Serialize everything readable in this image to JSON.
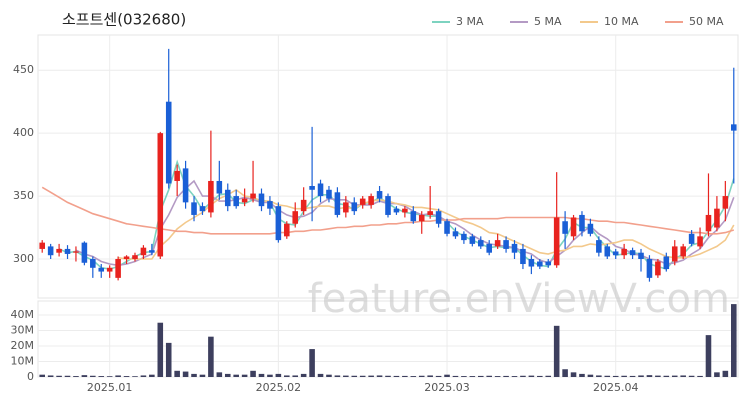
{
  "chart_data": [
    {
      "type": "candlestick",
      "title": "소프트센(032680)",
      "watermark": "feature.enViewV.com",
      "categories": [
        null,
        null,
        null,
        null,
        null,
        null,
        null,
        null,
        "2025.01",
        null,
        null,
        null,
        null,
        null,
        null,
        null,
        null,
        null,
        null,
        null,
        null,
        null,
        null,
        null,
        null,
        null,
        null,
        null,
        "2025.02",
        null,
        null,
        null,
        null,
        null,
        null,
        null,
        null,
        null,
        null,
        null,
        null,
        null,
        null,
        null,
        null,
        null,
        null,
        null,
        "2025.03",
        null,
        null,
        null,
        null,
        null,
        null,
        null,
        null,
        null,
        null,
        null,
        null,
        null,
        null,
        null,
        null,
        null,
        null,
        null,
        "2025.04",
        null,
        null,
        null,
        null,
        null,
        null,
        null,
        null,
        null,
        null,
        null,
        null,
        null,
        null
      ],
      "open": [
        308,
        310,
        305,
        308,
        305,
        313,
        300,
        293,
        290,
        285,
        300,
        300,
        303,
        307,
        302,
        425,
        362,
        372,
        345,
        342,
        337,
        362,
        355,
        350,
        345,
        348,
        352,
        346,
        342,
        318,
        328,
        338,
        358,
        360,
        355,
        353,
        337,
        345,
        343,
        343,
        354,
        350,
        340,
        337,
        338,
        330,
        335,
        338,
        330,
        322,
        320,
        318,
        315,
        312,
        310,
        315,
        312,
        308,
        300,
        298,
        298,
        295,
        330,
        318,
        335,
        328,
        315,
        310,
        306,
        303,
        307,
        305,
        300,
        287,
        302,
        298,
        302,
        320,
        310,
        322,
        325,
        340,
        407
      ],
      "high": [
        315,
        312,
        312,
        311,
        310,
        314,
        302,
        296,
        295,
        302,
        303,
        305,
        311,
        312,
        401,
        467,
        375,
        378,
        350,
        345,
        402,
        378,
        360,
        355,
        356,
        378,
        356,
        350,
        345,
        330,
        345,
        357,
        405,
        363,
        358,
        357,
        350,
        349,
        350,
        352,
        358,
        352,
        342,
        342,
        342,
        338,
        358,
        340,
        332,
        325,
        322,
        320,
        318,
        315,
        320,
        318,
        315,
        312,
        303,
        300,
        300,
        369,
        338,
        335,
        338,
        332,
        318,
        312,
        308,
        312,
        309,
        308,
        303,
        300,
        305,
        315,
        312,
        323,
        325,
        368,
        350,
        362,
        452
      ],
      "low": [
        305,
        300,
        302,
        300,
        298,
        295,
        285,
        285,
        285,
        283,
        296,
        298,
        300,
        303,
        300,
        356,
        350,
        340,
        330,
        335,
        333,
        347,
        338,
        340,
        342,
        345,
        338,
        335,
        313,
        316,
        325,
        335,
        330,
        345,
        345,
        333,
        333,
        335,
        340,
        340,
        345,
        333,
        335,
        333,
        328,
        320,
        332,
        325,
        318,
        316,
        312,
        310,
        308,
        303,
        308,
        305,
        300,
        292,
        288,
        292,
        293,
        293,
        308,
        315,
        318,
        318,
        302,
        300,
        300,
        300,
        300,
        290,
        282,
        285,
        290,
        295,
        300,
        310,
        308,
        318,
        322,
        330,
        360
      ],
      "close": [
        313,
        303,
        308,
        304,
        306,
        297,
        293,
        290,
        293,
        300,
        302,
        303,
        309,
        305,
        400,
        360,
        370,
        345,
        335,
        338,
        362,
        352,
        342,
        342,
        348,
        352,
        342,
        340,
        315,
        328,
        338,
        347,
        355,
        350,
        348,
        335,
        345,
        338,
        348,
        350,
        348,
        335,
        337,
        340,
        330,
        335,
        338,
        328,
        320,
        318,
        315,
        312,
        310,
        305,
        315,
        308,
        305,
        296,
        294,
        294,
        295,
        333,
        320,
        333,
        322,
        320,
        305,
        302,
        303,
        308,
        303,
        300,
        285,
        298,
        292,
        310,
        310,
        312,
        318,
        335,
        340,
        350,
        402
      ],
      "up_color": "#e8231f",
      "down_color": "#1a5fd6",
      "series": [
        {
          "name": "3 MA",
          "color": "#7dd3c0",
          "values": [
            null,
            null,
            308,
            305,
            306,
            302,
            299,
            293,
            292,
            294,
            298,
            302,
            305,
            306,
            338,
            355,
            377,
            358,
            350,
            339,
            345,
            351,
            352,
            345,
            344,
            347,
            347,
            345,
            332,
            328,
            327,
            338,
            347,
            351,
            351,
            344,
            343,
            339,
            344,
            345,
            349,
            344,
            340,
            337,
            336,
            335,
            334,
            334,
            329,
            322,
            318,
            315,
            312,
            309,
            310,
            309,
            309,
            303,
            298,
            295,
            294,
            307,
            316,
            329,
            325,
            325,
            316,
            309,
            303,
            304,
            305,
            304,
            296,
            294,
            292,
            300,
            304,
            311,
            313,
            322,
            331,
            342,
            364
          ]
        },
        {
          "name": "5 MA",
          "color": "#b49ac4",
          "values": [
            null,
            null,
            null,
            null,
            307,
            304,
            302,
            298,
            296,
            295,
            296,
            298,
            301,
            304,
            324,
            335,
            349,
            356,
            362,
            350,
            350,
            346,
            346,
            347,
            349,
            347,
            345,
            345,
            339,
            335,
            333,
            334,
            337,
            344,
            348,
            347,
            347,
            343,
            343,
            343,
            346,
            344,
            344,
            342,
            338,
            335,
            336,
            334,
            330,
            328,
            324,
            319,
            315,
            312,
            311,
            310,
            309,
            306,
            304,
            299,
            297,
            302,
            307,
            315,
            321,
            326,
            320,
            316,
            310,
            308,
            304,
            303,
            300,
            299,
            296,
            297,
            299,
            304,
            308,
            317,
            323,
            331,
            349
          ]
        },
        {
          "name": "10 MA",
          "color": "#f3c98c",
          "values": [
            null,
            null,
            null,
            null,
            null,
            null,
            null,
            null,
            null,
            301,
            300,
            300,
            300,
            300,
            310,
            316,
            324,
            329,
            333,
            337,
            343,
            348,
            351,
            355,
            350,
            349,
            346,
            346,
            343,
            342,
            340,
            340,
            341,
            342,
            342,
            340,
            341,
            340,
            344,
            346,
            347,
            346,
            344,
            343,
            341,
            341,
            340,
            339,
            336,
            333,
            330,
            328,
            325,
            321,
            320,
            317,
            314,
            311,
            308,
            305,
            304,
            306,
            307,
            310,
            310,
            312,
            311,
            312,
            313,
            315,
            315,
            312,
            308,
            305,
            302,
            301,
            301,
            302,
            304,
            307,
            310,
            315,
            327
          ]
        },
        {
          "name": "50 MA",
          "color": "#f2a08c",
          "values": [
            357,
            353,
            349,
            345,
            342,
            339,
            336,
            334,
            332,
            330,
            328,
            327,
            326,
            325,
            324,
            323,
            322,
            322,
            321,
            321,
            320,
            320,
            320,
            320,
            320,
            320,
            320,
            320,
            321,
            321,
            322,
            322,
            323,
            323,
            324,
            325,
            325,
            326,
            326,
            327,
            327,
            328,
            328,
            329,
            329,
            330,
            330,
            331,
            331,
            331,
            332,
            332,
            332,
            332,
            332,
            333,
            333,
            333,
            333,
            333,
            333,
            333,
            333,
            332,
            332,
            331,
            330,
            330,
            329,
            329,
            328,
            327,
            326,
            325,
            324,
            323,
            322,
            321,
            321,
            320,
            320,
            321,
            323
          ]
        }
      ],
      "ylim": [
        269,
        478
      ],
      "yticks": [
        300,
        350,
        400,
        450
      ],
      "grid": true,
      "legend": "top-right"
    },
    {
      "type": "bar",
      "color": "#3d3f5e",
      "values": [
        1500000,
        1000000,
        800000,
        800000,
        600000,
        1200000,
        800000,
        600000,
        500000,
        1000000,
        600000,
        500000,
        1000000,
        1500000,
        35000000,
        22000000,
        4000000,
        3500000,
        2000000,
        1500000,
        26000000,
        3000000,
        2000000,
        1500000,
        1500000,
        4000000,
        2000000,
        1500000,
        2000000,
        1000000,
        1000000,
        2000000,
        18000000,
        2000000,
        1500000,
        1000000,
        900000,
        800000,
        800000,
        900000,
        1000000,
        800000,
        700000,
        700000,
        600000,
        800000,
        1000000,
        700000,
        1500000,
        700000,
        600000,
        600000,
        700000,
        800000,
        600000,
        700000,
        600000,
        800000,
        900000,
        700000,
        800000,
        33000000,
        5000000,
        3000000,
        2000000,
        1500000,
        1000000,
        800000,
        700000,
        800000,
        700000,
        1000000,
        1200000,
        900000,
        800000,
        900000,
        1000000,
        800000,
        700000,
        27000000,
        3000000,
        4000000,
        47000000
      ],
      "ylim": [
        0,
        49000000
      ],
      "yticks": [
        0,
        {
          "value": 10000000,
          "label": "10M"
        },
        {
          "value": 20000000,
          "label": "20M"
        },
        {
          "value": 30000000,
          "label": "30M"
        },
        {
          "value": 40000000,
          "label": "40M"
        }
      ]
    }
  ]
}
